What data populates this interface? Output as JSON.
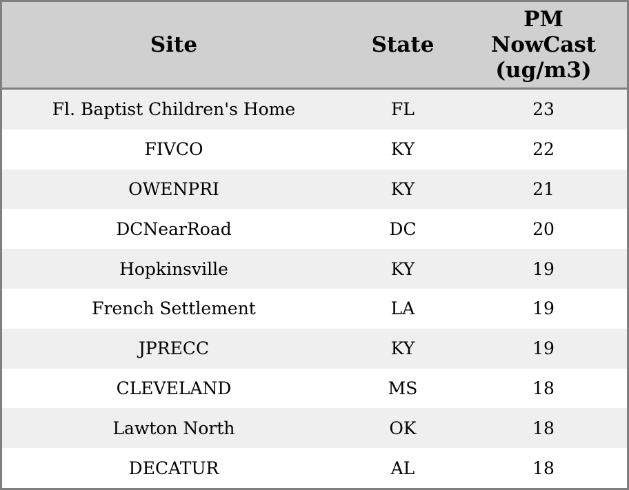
{
  "colors": {
    "header_bg": "#d0d0d0",
    "stripe": "#efefef",
    "row_white": "#ffffff",
    "border": "#7f7f7f",
    "text": "#000000"
  },
  "table": {
    "header": {
      "site": "Site",
      "state": "State",
      "pm_label": "PM NowCast (ug/m3)",
      "pm_lines": [
        "PM",
        "NowCast",
        "(ug/m3)"
      ]
    },
    "rows": [
      {
        "site": "Fl. Baptist Children's Home",
        "state": "FL",
        "pm": "23"
      },
      {
        "site": "FIVCO",
        "state": "KY",
        "pm": "22"
      },
      {
        "site": "OWENPRI",
        "state": "KY",
        "pm": "21"
      },
      {
        "site": "DCNearRoad",
        "state": "DC",
        "pm": "20"
      },
      {
        "site": "Hopkinsville",
        "state": "KY",
        "pm": "19"
      },
      {
        "site": "French Settlement",
        "state": "LA",
        "pm": "19"
      },
      {
        "site": "JPRECC",
        "state": "KY",
        "pm": "19"
      },
      {
        "site": "CLEVELAND",
        "state": "MS",
        "pm": "18"
      },
      {
        "site": "Lawton North",
        "state": "OK",
        "pm": "18"
      },
      {
        "site": "DECATUR",
        "state": "AL",
        "pm": "18"
      }
    ]
  },
  "chart_data": {
    "type": "table",
    "title": "",
    "columns": [
      "Site",
      "State",
      "PM NowCast (ug/m3)"
    ],
    "rows": [
      [
        "Fl. Baptist Children's Home",
        "FL",
        23
      ],
      [
        "FIVCO",
        "KY",
        22
      ],
      [
        "OWENPRI",
        "KY",
        21
      ],
      [
        "DCNearRoad",
        "DC",
        20
      ],
      [
        "Hopkinsville",
        "KY",
        19
      ],
      [
        "French Settlement",
        "LA",
        19
      ],
      [
        "JPRECC",
        "KY",
        19
      ],
      [
        "CLEVELAND",
        "MS",
        18
      ],
      [
        "Lawton North",
        "OK",
        18
      ],
      [
        "DECATUR",
        "AL",
        18
      ]
    ]
  }
}
